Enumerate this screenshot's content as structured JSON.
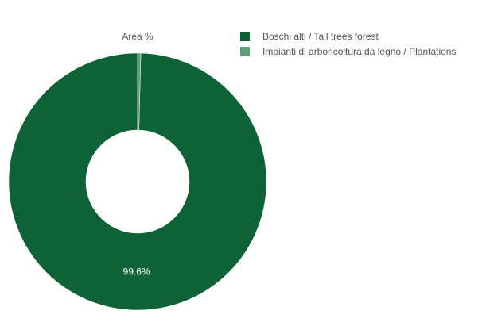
{
  "chart_data": {
    "type": "pie",
    "title": "Area %",
    "donut": true,
    "slices": [
      {
        "label": "Boschi alti / Tall trees forest",
        "value": 99.6,
        "display": "99.6%",
        "color": "#0d6335"
      },
      {
        "label": "Impianti di arboricoltura da legno / Plantations",
        "value": 0.4,
        "display": "",
        "color": "#5fa07a"
      }
    ],
    "legend_position": "top-right"
  }
}
